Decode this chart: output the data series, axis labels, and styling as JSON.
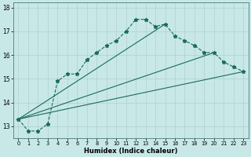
{
  "xlabel": "Humidex (Indice chaleur)",
  "bg_color": "#c8e8e8",
  "line_color": "#1a6b5a",
  "grid_color": "#b0d0d0",
  "xlim": [
    -0.5,
    23.5
  ],
  "ylim": [
    12.5,
    18.2
  ],
  "xticks": [
    0,
    1,
    2,
    3,
    4,
    5,
    6,
    7,
    8,
    9,
    10,
    11,
    12,
    13,
    14,
    15,
    16,
    17,
    18,
    19,
    20,
    21,
    22,
    23
  ],
  "yticks": [
    13,
    14,
    15,
    16,
    17,
    18
  ],
  "main_series": [
    13.3,
    12.8,
    12.8,
    13.1,
    14.9,
    15.2,
    15.2,
    15.8,
    16.1,
    16.4,
    16.6,
    17.0,
    17.5,
    17.5,
    17.2,
    17.3,
    16.8,
    16.6,
    16.4,
    16.1,
    16.1,
    15.7,
    15.5,
    15.3
  ],
  "straight_lines": [
    {
      "x0": 0,
      "y0": 13.3,
      "x1": 23,
      "y1": 15.3
    },
    {
      "x0": 0,
      "y0": 13.3,
      "x1": 20,
      "y1": 16.1
    },
    {
      "x0": 0,
      "y0": 13.3,
      "x1": 15,
      "y1": 17.3
    }
  ]
}
